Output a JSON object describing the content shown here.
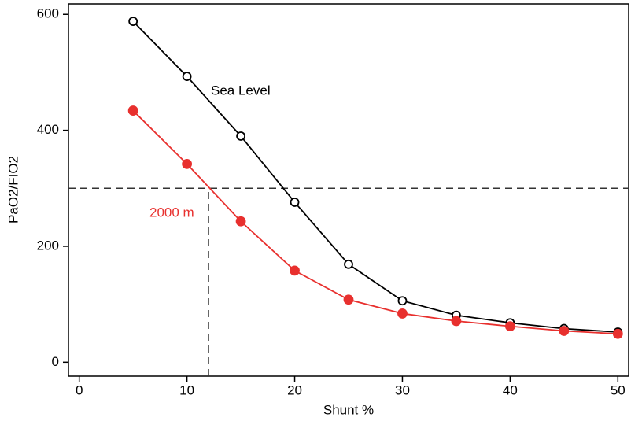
{
  "chart_data": {
    "type": "line",
    "x_label": "Shunt %",
    "y_label": "PaO2/FIO2",
    "x": [
      5,
      10,
      15,
      20,
      25,
      30,
      35,
      40,
      45,
      50
    ],
    "series": [
      {
        "name": "Sea Level",
        "color": "#000000",
        "marker": "open",
        "values": [
          588,
          493,
          390,
          276,
          169,
          106,
          81,
          68,
          58,
          52
        ]
      },
      {
        "name": "2000 m",
        "color": "#e8302e",
        "marker": "filled",
        "values": [
          434,
          342,
          243,
          158,
          108,
          84,
          71,
          62,
          54,
          49
        ]
      }
    ],
    "xlim": [
      -1,
      51
    ],
    "ylim": [
      -24,
      618
    ],
    "xticks": [
      0,
      10,
      20,
      30,
      40,
      50
    ],
    "yticks": [
      0,
      200,
      400,
      600
    ],
    "hline": 300,
    "vline": 12,
    "grid": false
  }
}
